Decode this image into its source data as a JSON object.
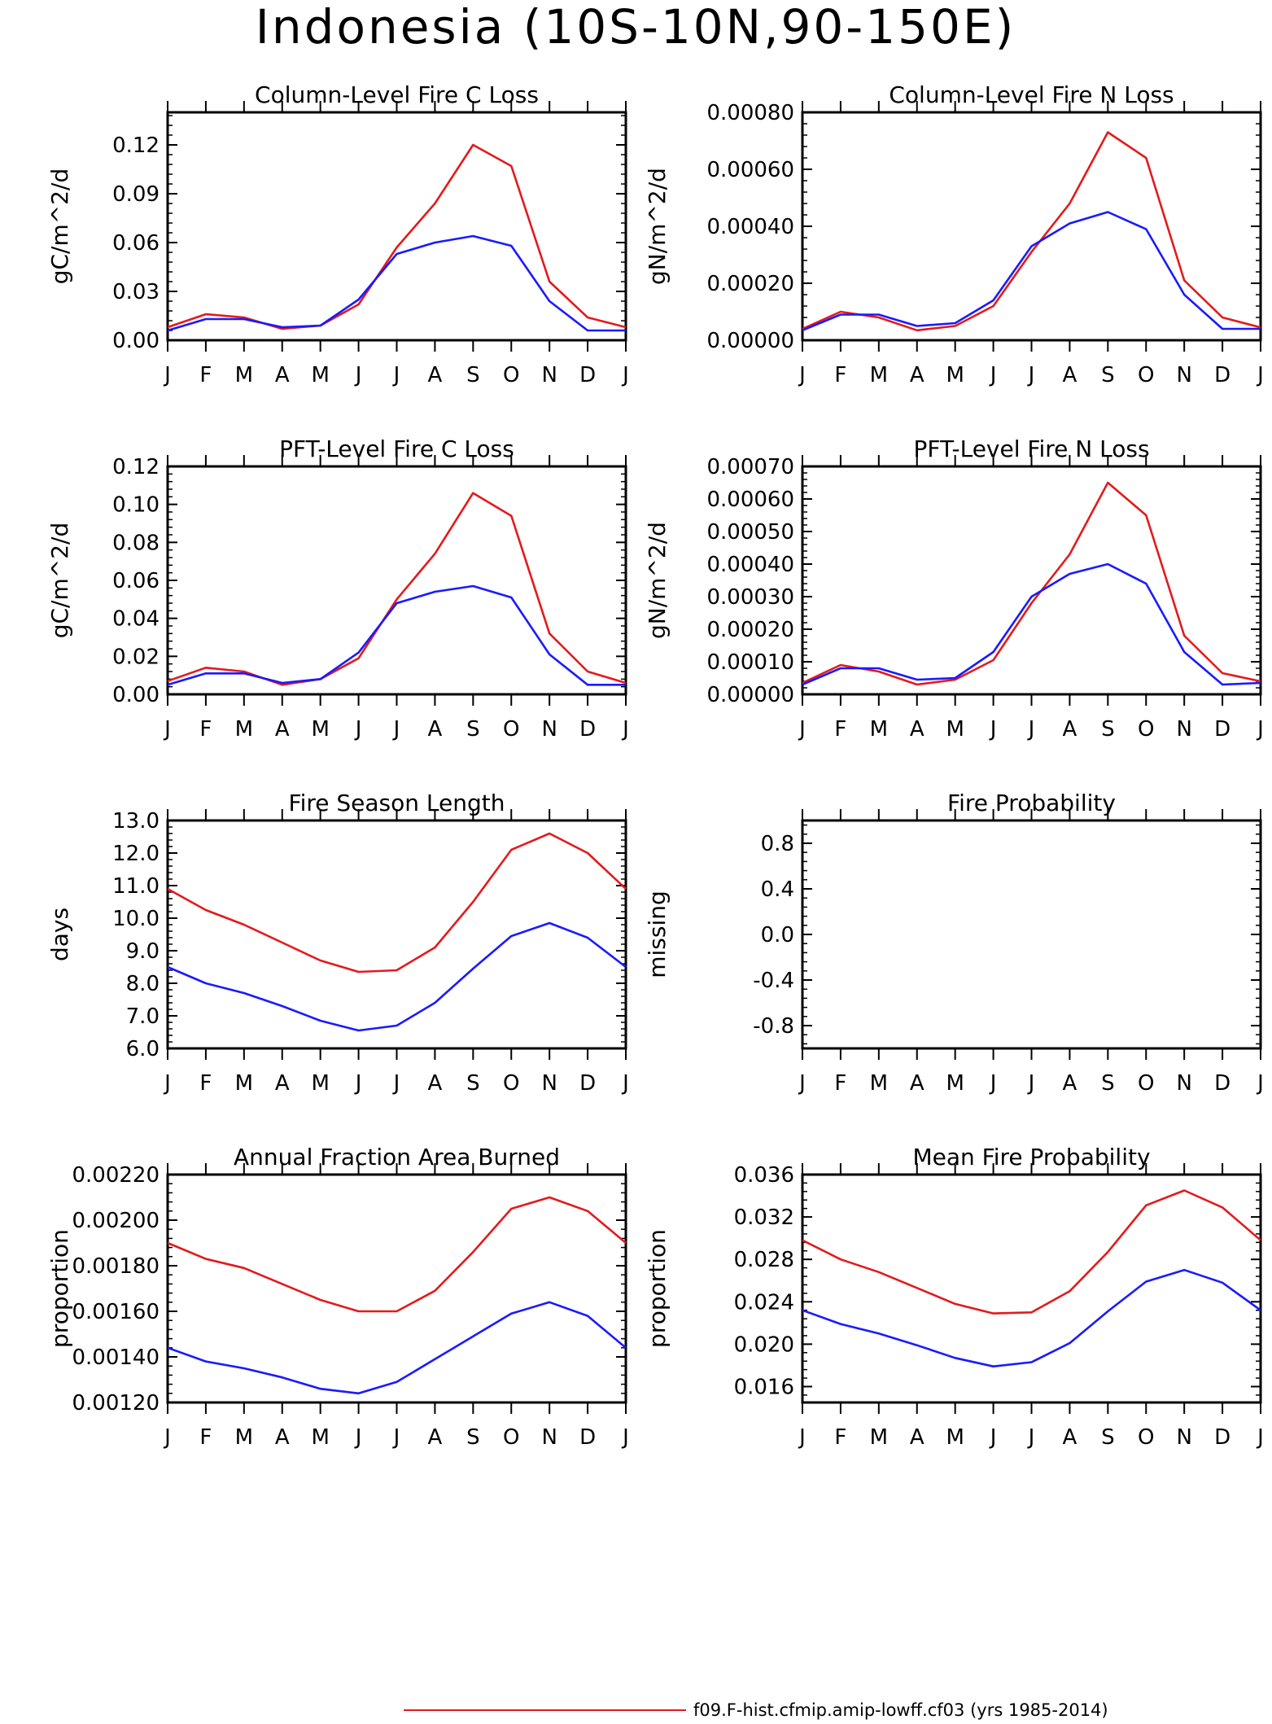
{
  "figure_title": "Indonesia (10S-10N,90-150E)",
  "legend": {
    "items": [
      {
        "label": "f09.F-hist.cfmip.amip-lowff.cf03 (yrs 1985-2014)",
        "color": "#e31a1c"
      }
    ]
  },
  "colors": {
    "red": "#e31a1c",
    "blue": "#1a1aff",
    "axis": "#000000"
  },
  "chart_data": [
    {
      "type": "line",
      "title": "Column-Level Fire C Loss",
      "ylabel": "gC/m^2/d",
      "categories": [
        "J",
        "F",
        "M",
        "A",
        "M",
        "J",
        "J",
        "A",
        "S",
        "O",
        "N",
        "D",
        "J"
      ],
      "ylim": [
        0,
        0.14
      ],
      "yticks": [
        "0.00",
        "0.03",
        "0.06",
        "0.09",
        "0.12"
      ],
      "series": [
        {
          "color": "#e31a1c",
          "values": [
            0.008,
            0.016,
            0.014,
            0.007,
            0.009,
            0.022,
            0.057,
            0.084,
            0.12,
            0.107,
            0.036,
            0.014,
            0.008
          ]
        },
        {
          "color": "#1a1aff",
          "values": [
            0.006,
            0.013,
            0.013,
            0.008,
            0.009,
            0.025,
            0.053,
            0.06,
            0.064,
            0.058,
            0.024,
            0.006,
            0.006
          ]
        }
      ]
    },
    {
      "type": "line",
      "title": "Column-Level Fire N Loss",
      "ylabel": "gN/m^2/d",
      "categories": [
        "J",
        "F",
        "M",
        "A",
        "M",
        "J",
        "J",
        "A",
        "S",
        "O",
        "N",
        "D",
        "J"
      ],
      "ylim": [
        0,
        0.0008
      ],
      "yticks": [
        "0.00000",
        "0.00020",
        "0.00040",
        "0.00060",
        "0.00080"
      ],
      "series": [
        {
          "color": "#e31a1c",
          "values": [
            4e-05,
            0.0001,
            8e-05,
            3.5e-05,
            5e-05,
            0.00012,
            0.00031,
            0.00048,
            0.00073,
            0.00064,
            0.00021,
            8e-05,
            4.5e-05
          ]
        },
        {
          "color": "#1a1aff",
          "values": [
            3.5e-05,
            9e-05,
            9e-05,
            5e-05,
            6e-05,
            0.00014,
            0.00033,
            0.00041,
            0.00045,
            0.00039,
            0.00016,
            4e-05,
            4e-05
          ]
        }
      ]
    },
    {
      "type": "line",
      "title": "PFT-Level Fire C Loss",
      "ylabel": "gC/m^2/d",
      "categories": [
        "J",
        "F",
        "M",
        "A",
        "M",
        "J",
        "J",
        "A",
        "S",
        "O",
        "N",
        "D",
        "J"
      ],
      "ylim": [
        0,
        0.12
      ],
      "yticks": [
        "0.00",
        "0.02",
        "0.04",
        "0.06",
        "0.08",
        "0.10",
        "0.12"
      ],
      "series": [
        {
          "color": "#e31a1c",
          "values": [
            0.007,
            0.014,
            0.012,
            0.005,
            0.008,
            0.019,
            0.05,
            0.074,
            0.106,
            0.094,
            0.032,
            0.012,
            0.006
          ]
        },
        {
          "color": "#1a1aff",
          "values": [
            0.005,
            0.011,
            0.011,
            0.006,
            0.008,
            0.022,
            0.048,
            0.054,
            0.057,
            0.051,
            0.021,
            0.005,
            0.005
          ]
        }
      ]
    },
    {
      "type": "line",
      "title": "PFT-Level Fire N Loss",
      "ylabel": "gN/m^2/d",
      "categories": [
        "J",
        "F",
        "M",
        "A",
        "M",
        "J",
        "J",
        "A",
        "S",
        "O",
        "N",
        "D",
        "J"
      ],
      "ylim": [
        0,
        0.0007
      ],
      "yticks": [
        "0.00000",
        "0.00010",
        "0.00020",
        "0.00030",
        "0.00040",
        "0.00050",
        "0.00060",
        "0.00070"
      ],
      "series": [
        {
          "color": "#e31a1c",
          "values": [
            3.5e-05,
            9e-05,
            7e-05,
            3e-05,
            4.5e-05,
            0.000105,
            0.00028,
            0.00043,
            0.00065,
            0.00055,
            0.00018,
            6.5e-05,
            4e-05
          ]
        },
        {
          "color": "#1a1aff",
          "values": [
            3e-05,
            8e-05,
            8e-05,
            4.5e-05,
            5e-05,
            0.00013,
            0.0003,
            0.00037,
            0.0004,
            0.00034,
            0.00013,
            3e-05,
            3.5e-05
          ]
        }
      ]
    },
    {
      "type": "line",
      "title": "Fire Season Length",
      "ylabel": "days",
      "categories": [
        "J",
        "F",
        "M",
        "A",
        "M",
        "J",
        "J",
        "A",
        "S",
        "O",
        "N",
        "D",
        "J"
      ],
      "ylim": [
        6,
        13
      ],
      "yticks": [
        "6.0",
        "7.0",
        "8.0",
        "9.0",
        "10.0",
        "11.0",
        "12.0",
        "13.0"
      ],
      "series": [
        {
          "color": "#e31a1c",
          "values": [
            10.9,
            10.25,
            9.8,
            9.25,
            8.7,
            8.35,
            8.4,
            9.1,
            10.5,
            12.1,
            12.6,
            12.0,
            10.9
          ]
        },
        {
          "color": "#1a1aff",
          "values": [
            8.5,
            8.0,
            7.7,
            7.3,
            6.85,
            6.55,
            6.7,
            7.4,
            8.45,
            9.45,
            9.85,
            9.4,
            8.5
          ]
        }
      ]
    },
    {
      "type": "line",
      "title": "Fire Probability",
      "ylabel": "missing",
      "categories": [
        "J",
        "F",
        "M",
        "A",
        "M",
        "J",
        "J",
        "A",
        "S",
        "O",
        "N",
        "D",
        "J"
      ],
      "ylim": [
        -1,
        1
      ],
      "yticks": [
        "-0.8",
        "-0.4",
        "0.0",
        "0.4",
        "0.8"
      ],
      "series": []
    },
    {
      "type": "line",
      "title": "Annual Fraction Area Burned",
      "ylabel": "proportion",
      "categories": [
        "J",
        "F",
        "M",
        "A",
        "M",
        "J",
        "J",
        "A",
        "S",
        "O",
        "N",
        "D",
        "J"
      ],
      "ylim": [
        0.0012,
        0.0022
      ],
      "yticks": [
        "0.00120",
        "0.00140",
        "0.00160",
        "0.00180",
        "0.00200",
        "0.00220"
      ],
      "series": [
        {
          "color": "#e31a1c",
          "values": [
            0.0019,
            0.00183,
            0.00179,
            0.00172,
            0.00165,
            0.0016,
            0.0016,
            0.00169,
            0.00186,
            0.00205,
            0.0021,
            0.00204,
            0.0019
          ]
        },
        {
          "color": "#1a1aff",
          "values": [
            0.00144,
            0.00138,
            0.00135,
            0.00131,
            0.00126,
            0.00124,
            0.00129,
            0.00139,
            0.00149,
            0.00159,
            0.00164,
            0.00158,
            0.00144
          ]
        }
      ]
    },
    {
      "type": "line",
      "title": "Mean Fire Probability",
      "ylabel": "proportion",
      "categories": [
        "J",
        "F",
        "M",
        "A",
        "M",
        "J",
        "J",
        "A",
        "S",
        "O",
        "N",
        "D",
        "J"
      ],
      "ylim": [
        0.0145,
        0.036
      ],
      "yticks": [
        "0.016",
        "0.020",
        "0.024",
        "0.028",
        "0.032",
        "0.036"
      ],
      "series": [
        {
          "color": "#e31a1c",
          "values": [
            0.0298,
            0.028,
            0.0268,
            0.0253,
            0.0238,
            0.0229,
            0.023,
            0.025,
            0.0287,
            0.0331,
            0.0345,
            0.0329,
            0.0298
          ]
        },
        {
          "color": "#1a1aff",
          "values": [
            0.0232,
            0.0219,
            0.021,
            0.0199,
            0.0187,
            0.0179,
            0.0183,
            0.0201,
            0.0231,
            0.0259,
            0.027,
            0.0258,
            0.0232
          ]
        }
      ]
    }
  ]
}
